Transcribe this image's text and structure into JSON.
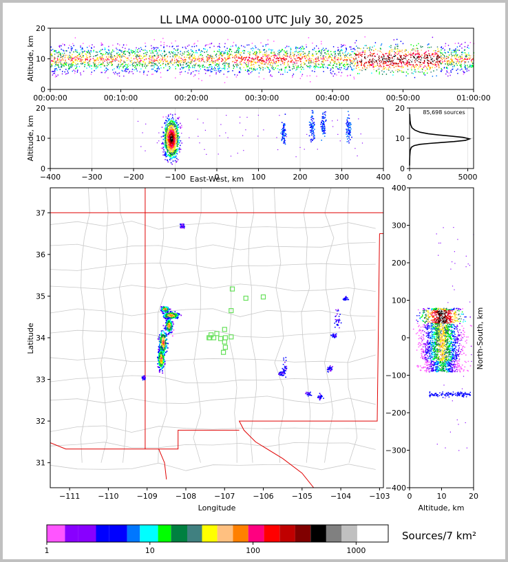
{
  "title": "LL LMA 0000-0100 UTC July 30, 2025",
  "source_count_label": "85,698 sources",
  "colorbar_label": "Sources/7 km²",
  "chart_data": [
    {
      "type": "heatmap",
      "panel": "altitude-time",
      "ylabel": "Altitude, km",
      "ylim": [
        0,
        20
      ],
      "yticks": [
        "0",
        "10",
        "20"
      ],
      "xlim": [
        "00:00:00",
        "01:00:00"
      ],
      "xticks": [
        "00:00:00",
        "00:10:00",
        "00:20:00",
        "00:30:00",
        "00:40:00",
        "00:50:00",
        "01:00:00"
      ],
      "band_center_km": 10
    },
    {
      "type": "heatmap",
      "panel": "altitude-east-west",
      "xlabel": "East-West, km",
      "ylabel": "Altitude, km",
      "xlim": [
        -400,
        400
      ],
      "ylim": [
        0,
        20
      ],
      "xticks": [
        "−400",
        "−300",
        "−200",
        "−100",
        "0",
        "100",
        "200",
        "300",
        "400"
      ],
      "yticks": [
        "0",
        "10",
        "20"
      ],
      "clusters": [
        {
          "x": -110,
          "alt": 10,
          "intensity": "high"
        },
        {
          "x": 160,
          "alt": 12,
          "intensity": "low"
        },
        {
          "x": 228,
          "alt": 14,
          "intensity": "low"
        },
        {
          "x": 255,
          "alt": 15,
          "intensity": "low"
        },
        {
          "x": 315,
          "alt": 13,
          "intensity": "low"
        }
      ]
    },
    {
      "type": "line",
      "panel": "altitude-histogram",
      "xlim": [
        0,
        5500
      ],
      "ylim": [
        0,
        20
      ],
      "xticks": [
        "0",
        "5000"
      ],
      "yticks": [
        "0",
        "10",
        "20"
      ],
      "x": [
        0,
        20,
        60,
        150,
        400,
        900,
        1700,
        2700,
        3800,
        4800,
        5150,
        4600,
        3600,
        2500,
        1600,
        900,
        450,
        200,
        90,
        40,
        10
      ],
      "y": [
        1,
        4,
        6,
        7,
        7.6,
        8,
        8.3,
        8.6,
        8.9,
        9.3,
        9.8,
        10.3,
        10.7,
        11.1,
        11.5,
        12,
        12.7,
        13.5,
        14.6,
        16,
        18
      ]
    },
    {
      "type": "scatter",
      "panel": "plan-view",
      "xlabel": "Longitude",
      "ylabel": "Latitude",
      "xlim": [
        -111.5,
        -102.9
      ],
      "ylim": [
        30.4,
        37.6
      ],
      "xticks": [
        "−111",
        "−110",
        "−109",
        "−108",
        "−107",
        "−106",
        "−105",
        "−104",
        "−103"
      ],
      "yticks": [
        "31",
        "32",
        "33",
        "34",
        "35",
        "36",
        "37"
      ],
      "stations": [
        [
          -106.8,
          35.17
        ],
        [
          -106.45,
          34.95
        ],
        [
          -106.0,
          34.98
        ],
        [
          -106.83,
          34.65
        ],
        [
          -107.0,
          34.2
        ],
        [
          -107.2,
          34.1
        ],
        [
          -107.35,
          34.07
        ],
        [
          -107.38,
          34.0
        ],
        [
          -107.28,
          34.0
        ],
        [
          -107.1,
          33.98
        ],
        [
          -106.98,
          34.0
        ],
        [
          -106.83,
          34.02
        ],
        [
          -107.0,
          33.9
        ],
        [
          -106.98,
          33.77
        ],
        [
          -107.03,
          33.65
        ],
        [
          -107.4,
          34.0
        ]
      ]
    },
    {
      "type": "heatmap",
      "panel": "north-south-altitude",
      "xlabel": "Altitude, km",
      "ylabel": "North-South, km",
      "xlim": [
        0,
        20
      ],
      "ylim": [
        -400,
        400
      ],
      "xticks": [
        "0",
        "10",
        "20"
      ],
      "yticks": [
        "−400",
        "−300",
        "−200",
        "−100",
        "0",
        "100",
        "200",
        "300",
        "400"
      ]
    }
  ],
  "colorbar": {
    "tick_labels": [
      "1",
      "10",
      "100",
      "1000"
    ],
    "colors": [
      "#ff55ff",
      "#8800ff",
      "#8800ff",
      "#0000ff",
      "#0000ff",
      "#0077ff",
      "#00ffff",
      "#00ff00",
      "#008040",
      "#408080",
      "#ffff00",
      "#ffc080",
      "#ff8000",
      "#ff0080",
      "#ff0000",
      "#c00000",
      "#800000",
      "#000000",
      "#808080",
      "#c0c0c0",
      "#ffffff"
    ]
  }
}
